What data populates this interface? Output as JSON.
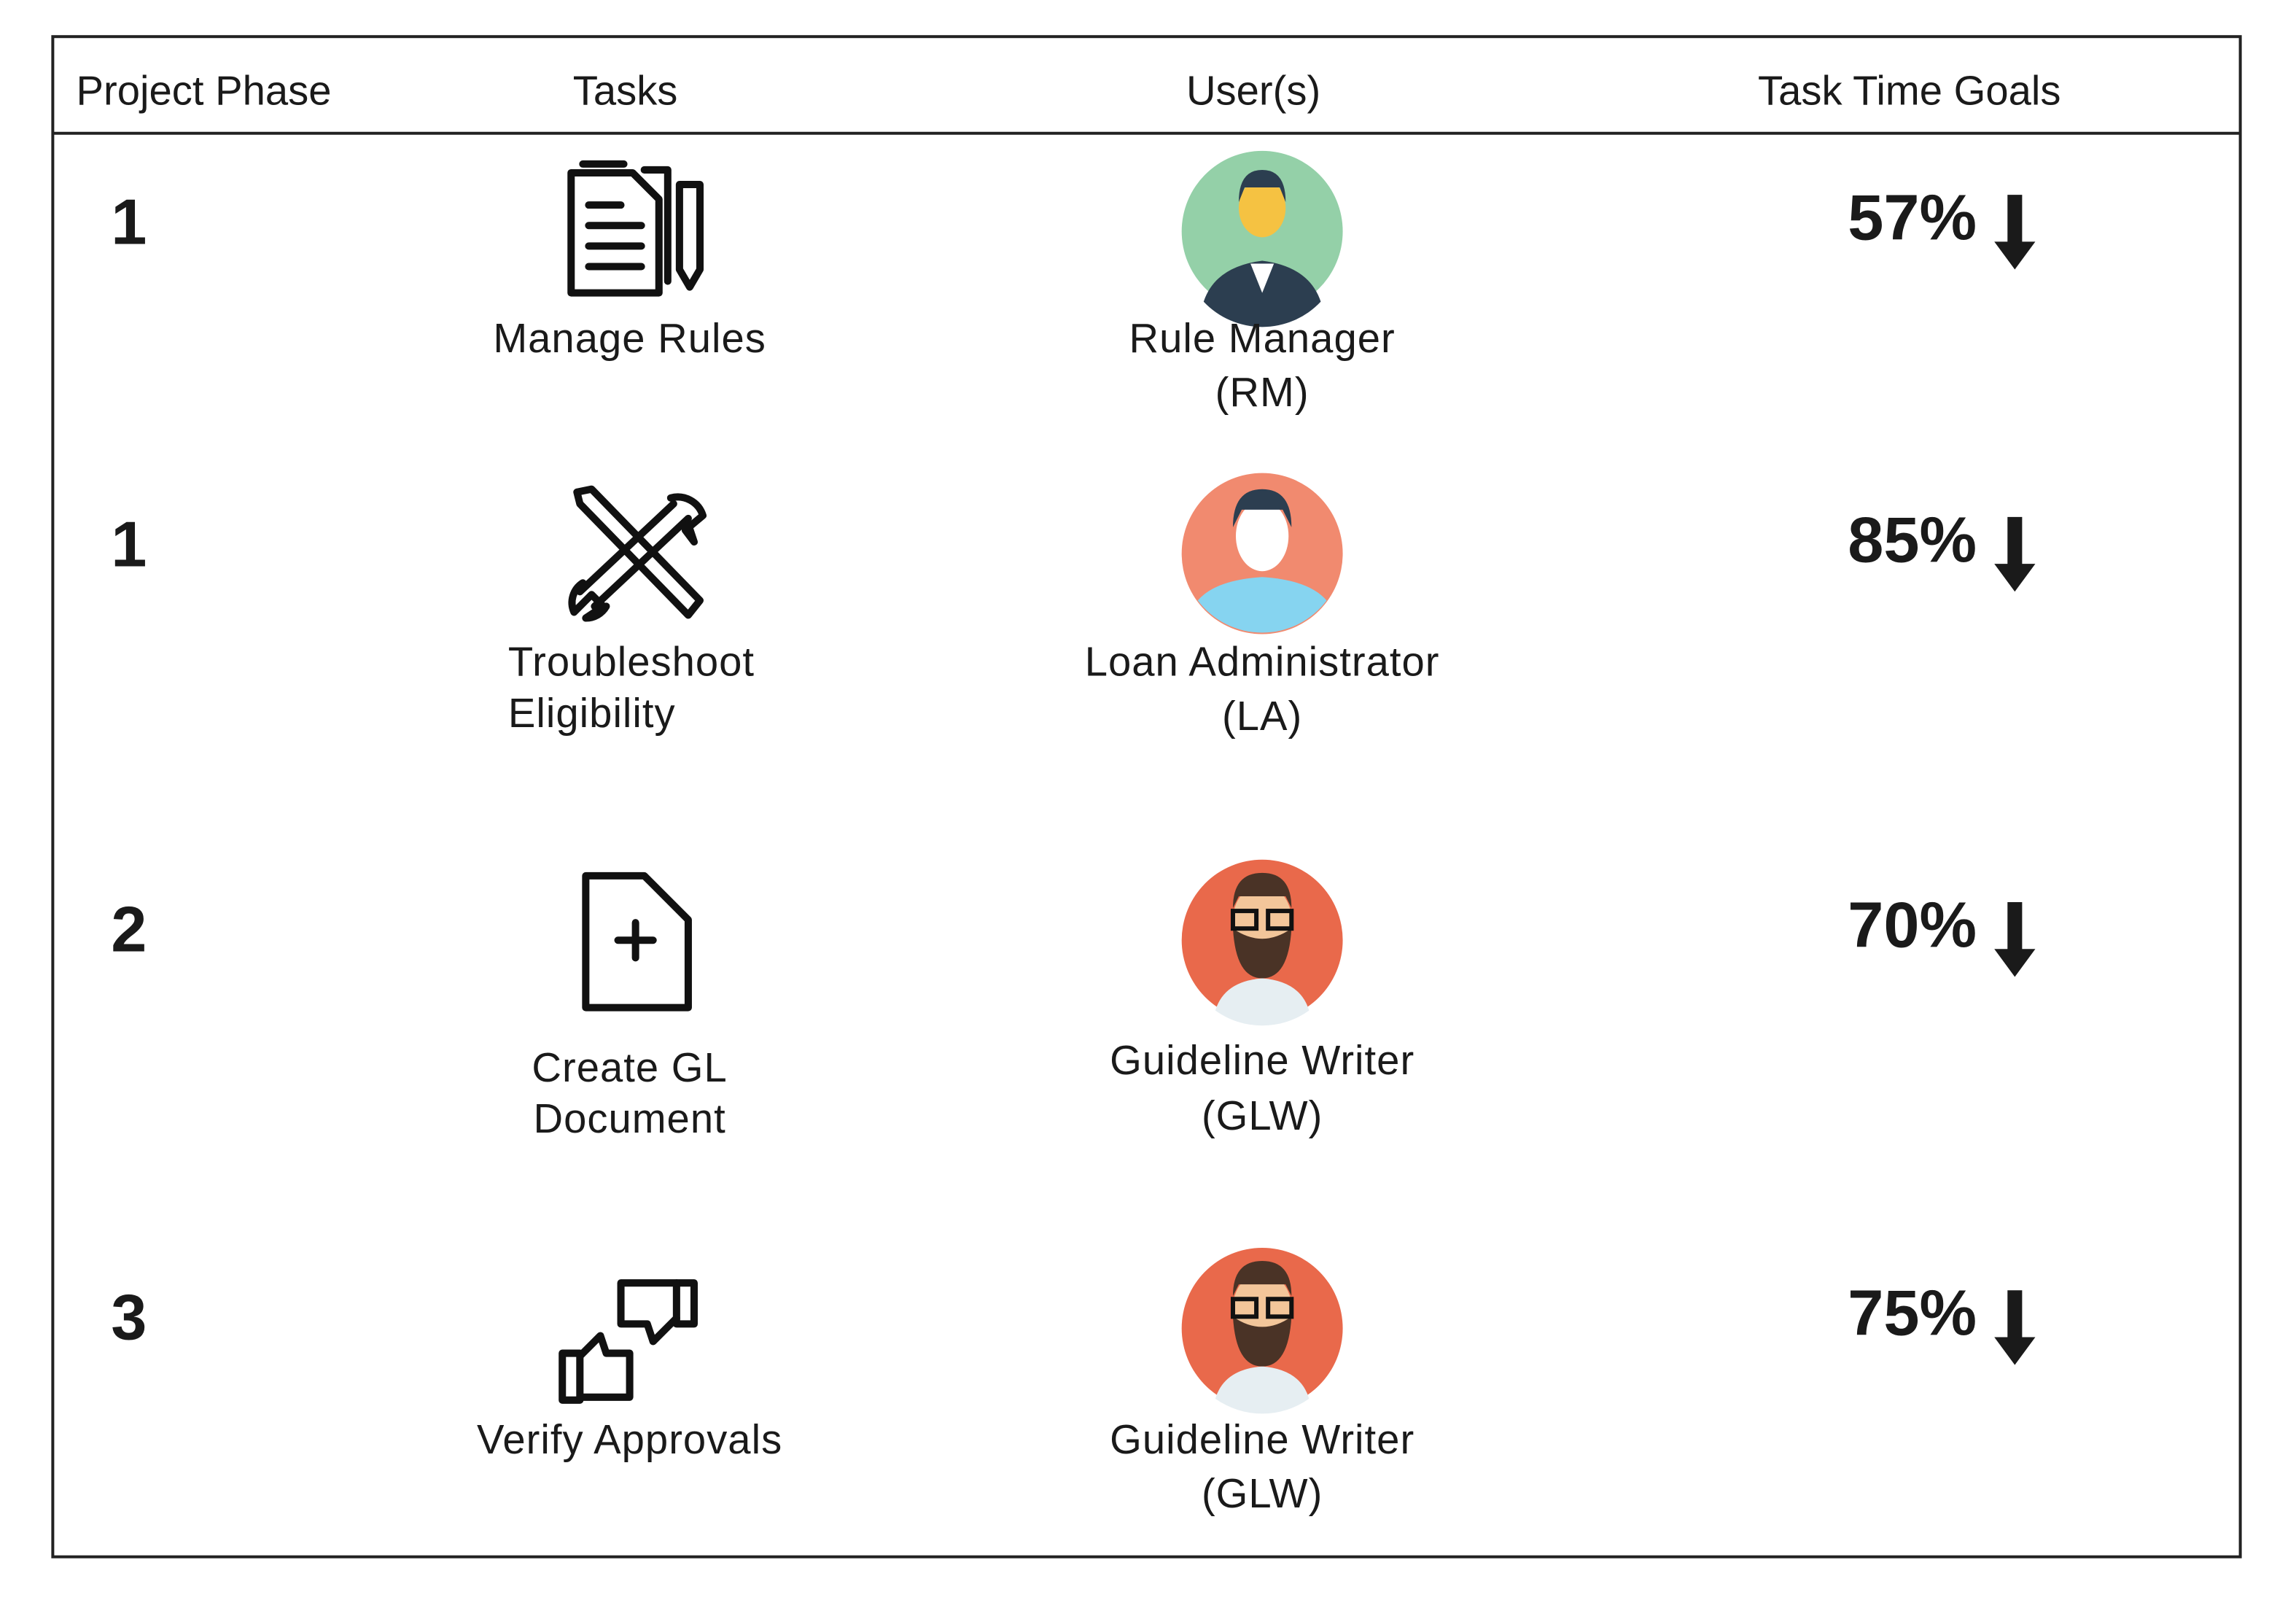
{
  "table": {
    "headers": [
      "Project Phase",
      "Tasks",
      "User(s)",
      "Task Time Goals"
    ],
    "rows": [
      {
        "phase": 1,
        "task": [
          "Manage Rules"
        ],
        "user": "Rule Manager",
        "abbr": "(RM)",
        "goal": "57%"
      },
      {
        "phase": 1,
        "task": [
          "Troubleshoot",
          "Eligibility"
        ],
        "user": "Loan Administrator",
        "abbr": "(LA)",
        "goal": "85%"
      },
      {
        "phase": 2,
        "task": [
          "Create GL",
          "Document"
        ],
        "user": "Guideline Writer",
        "abbr": "(GLW)",
        "goal": "70%"
      },
      {
        "phase": 3,
        "task": [
          "Verify Approvals"
        ],
        "user": "Guideline Writer",
        "abbr": "(GLW)",
        "goal": "75%"
      }
    ]
  }
}
